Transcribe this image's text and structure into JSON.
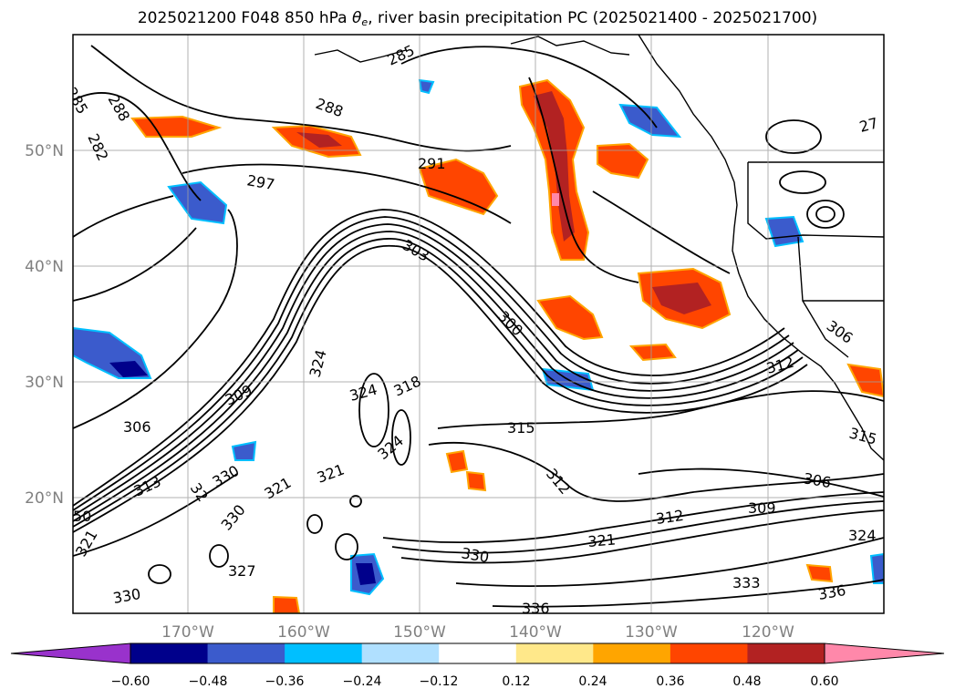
{
  "title": {
    "prefix": "2025021200 F048 850 hPa ",
    "theta": "θ",
    "subscript": "e",
    "suffix": ", river basin precipitation PC (2025021400 - 2025021700)"
  },
  "axes": {
    "lat_ticks": [
      "50°N",
      "40°N",
      "30°N",
      "20°N"
    ],
    "lon_ticks": [
      "170°W",
      "160°W",
      "150°W",
      "140°W",
      "130°W",
      "120°W"
    ]
  },
  "colorbar": {
    "tick_labels": [
      "−0.60",
      "−0.48",
      "−0.36",
      "−0.24",
      "−0.12",
      "0.12",
      "0.24",
      "0.36",
      "0.48",
      "0.60"
    ],
    "colors": {
      "under": "#9932cc",
      "bins": [
        "#00008b",
        "#3b5bcc",
        "#00bfff",
        "#b0e0ff",
        "#ffffff",
        "#ffe88a",
        "#ffa500",
        "#ff4500",
        "#b22222"
      ],
      "over": "#ff88aa"
    }
  },
  "contour_labels": [
    "285",
    "288",
    "282",
    "285",
    "288",
    "291",
    "297",
    "303",
    "300",
    "27",
    "309",
    "306",
    "324",
    "324",
    "318",
    "324",
    "315",
    "312",
    "312",
    "330",
    "321",
    "306",
    "309",
    "312",
    "324",
    "321",
    "330",
    "333",
    "336",
    "336",
    "306",
    "315",
    "327",
    "321",
    "330",
    "32",
    "330",
    "321",
    "50",
    "313"
  ]
}
